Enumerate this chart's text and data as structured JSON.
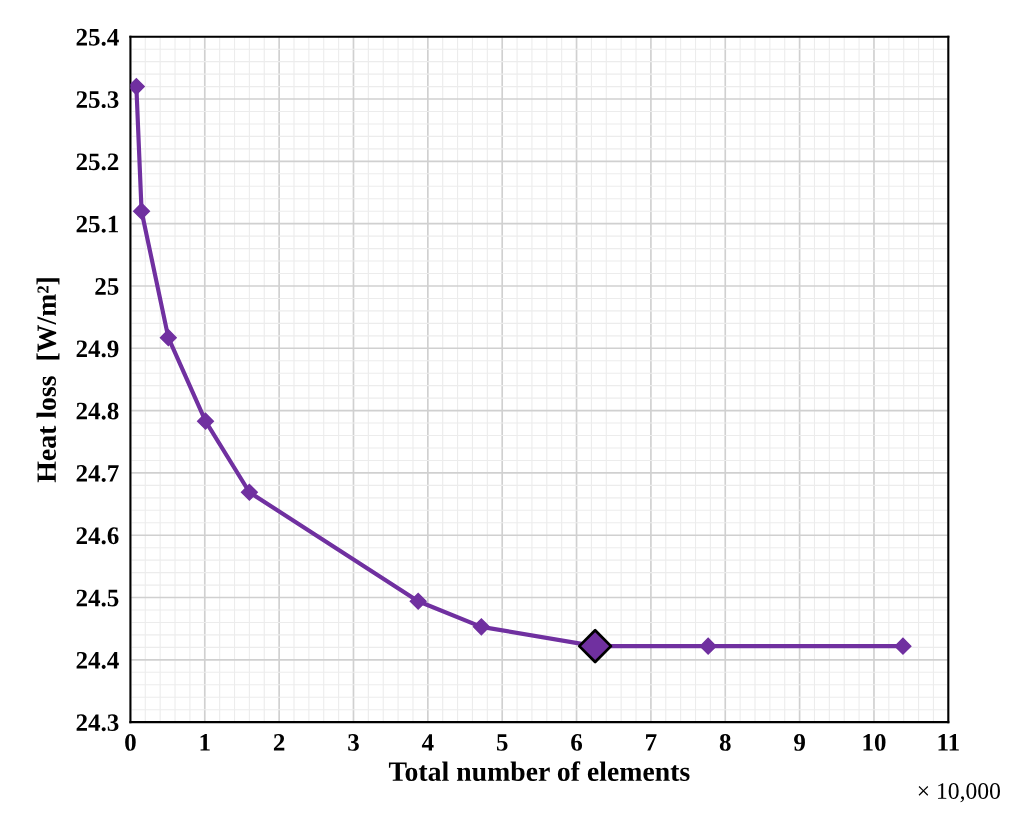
{
  "chart_data": {
    "type": "line",
    "xlabel": "Total number of elements",
    "ylabel": "Heat loss  [W/m²]",
    "x": [
      0.08,
      0.15,
      0.51,
      1.01,
      1.6,
      3.87,
      4.72,
      6.25,
      7.77,
      10.39
    ],
    "series": [
      {
        "color": "#7030a0",
        "values": [
          25.32,
          25.12,
          24.917,
          24.783,
          24.669,
          24.494,
          24.453,
          24.422,
          24.422,
          24.422
        ]
      },
      {
        "type": "scatter",
        "color": "#7030a0",
        "x": [
          6.25
        ],
        "values": [
          24.422
        ]
      }
    ],
    "xlim": [
      0,
      11
    ],
    "xticks": [
      0,
      1,
      2,
      3,
      4,
      5,
      6,
      7,
      8,
      9,
      10,
      11
    ],
    "ylim": [
      24.3,
      25.4
    ],
    "yticks": [
      24.3,
      24.4,
      24.5,
      24.6,
      24.7,
      24.8,
      24.9,
      25,
      25.1,
      25.2,
      25.3,
      25.4
    ],
    "grid": true,
    "marker": "diamond",
    "line_style": "solid",
    "annotations": [
      "× 10,000"
    ]
  }
}
